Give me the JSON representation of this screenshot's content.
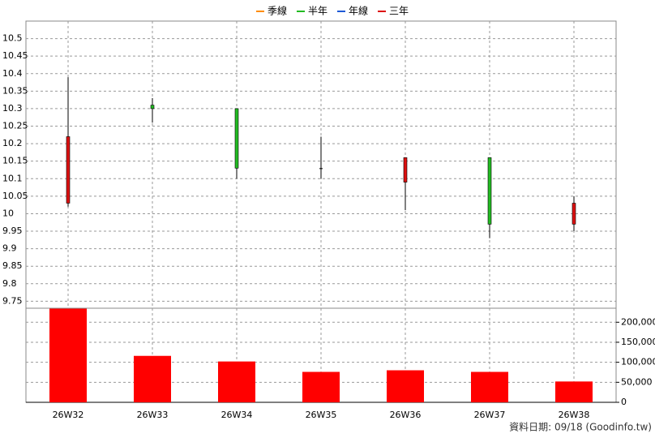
{
  "chart_data": {
    "type": "candlestick",
    "legend": [
      {
        "name": "季線",
        "color": "#ff8c00"
      },
      {
        "name": "半年",
        "color": "#22bb22"
      },
      {
        "name": "年線",
        "color": "#1e5ad7"
      },
      {
        "name": "三年",
        "color": "#dd1111"
      }
    ],
    "categories": [
      "26W32",
      "26W33",
      "26W34",
      "26W35",
      "26W36",
      "26W37",
      "26W38"
    ],
    "open": [
      10.03,
      10.31,
      10.3,
      10.13,
      10.09,
      10.16,
      9.97
    ],
    "high": [
      10.39,
      10.33,
      10.3,
      10.22,
      10.16,
      10.16,
      10.05
    ],
    "low": [
      10.02,
      10.26,
      10.1,
      10.1,
      10.01,
      9.93,
      9.95
    ],
    "close": [
      10.22,
      10.3,
      10.13,
      10.13,
      10.16,
      9.97,
      10.03
    ],
    "up_color": "#dd1111",
    "down_color": "#22bb22",
    "ylim": [
      9.73,
      10.55
    ],
    "yticks": [
      9.75,
      9.8,
      9.85,
      9.9,
      9.95,
      10,
      10.05,
      10.1,
      10.15,
      10.2,
      10.25,
      10.3,
      10.35,
      10.4,
      10.45,
      10.5
    ],
    "volume": {
      "color": "#ff0000",
      "values": [
        234000,
        116000,
        102000,
        76000,
        80000,
        76000,
        52000
      ]
    },
    "y2lim": [
      0,
      235000
    ],
    "y2ticks": [
      0,
      {
        "value": 50000,
        "label": "50,000"
      },
      {
        "value": 100000,
        "label": "100,000"
      },
      {
        "value": 150000,
        "label": "150,000"
      },
      {
        "value": 200000,
        "label": "200,000"
      }
    ],
    "grid": true,
    "source": "資料日期: 09/18  (Goodinfo.tw)"
  }
}
